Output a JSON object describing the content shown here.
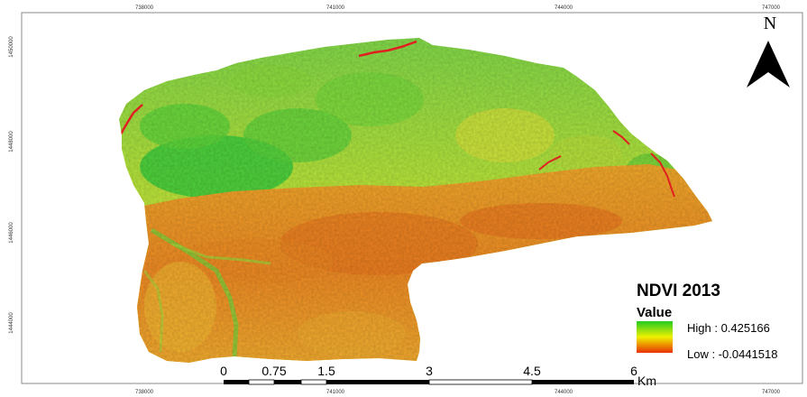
{
  "map": {
    "title": "NDVI 2013",
    "legend": {
      "heading": "Value",
      "high_label": "High : 0.425166",
      "low_label": "Low : -0.0441518",
      "colors": {
        "high": "#22cc22",
        "mid": "#f0f000",
        "low": "#e83000"
      }
    },
    "north_arrow": {
      "label": "N",
      "icon": "north-arrow-icon"
    },
    "scale_bar": {
      "unit": "Km",
      "labels": [
        "0",
        "0.75",
        "1.5",
        "3",
        "4.5",
        "6"
      ]
    },
    "frame": {
      "x_ticks_top": [
        "738000",
        "741000",
        "744000",
        "747000"
      ],
      "x_ticks_bottom": [
        "738000",
        "741000",
        "744000",
        "747000"
      ],
      "y_ticks_left": [
        "1450000",
        "1448000",
        "1446000",
        "1444000"
      ]
    },
    "raster_colors": {
      "green": "#33cc33",
      "yellowgreen": "#b4e61e",
      "yellow": "#e8e61e",
      "orange": "#f09a1e",
      "redorange": "#e8641e",
      "water": "#e02020"
    }
  }
}
